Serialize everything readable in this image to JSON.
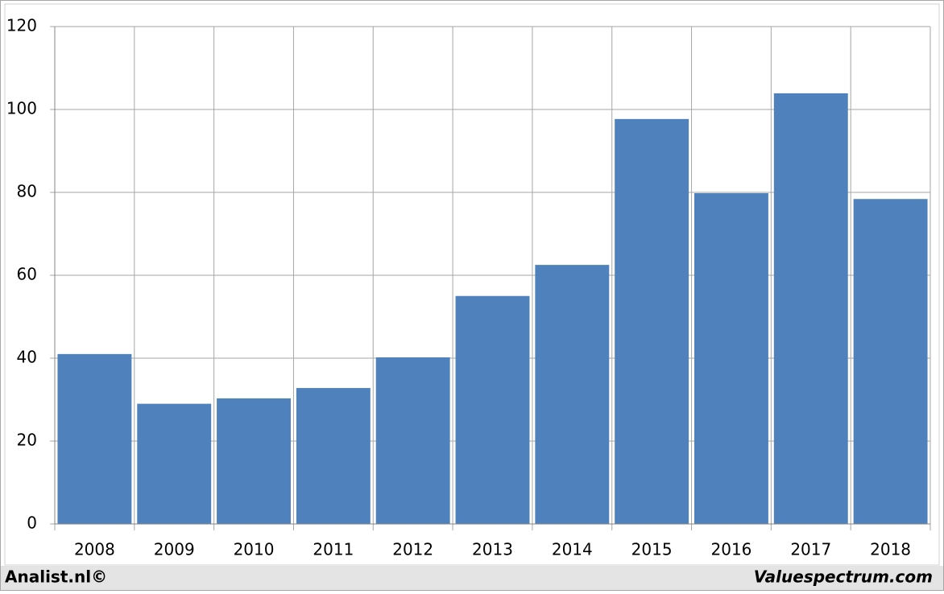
{
  "chart_data": {
    "type": "bar",
    "categories": [
      "2008",
      "2009",
      "2010",
      "2011",
      "2012",
      "2013",
      "2014",
      "2015",
      "2016",
      "2017",
      "2018"
    ],
    "values": [
      41,
      29,
      30.3,
      32.8,
      40.2,
      55,
      62.5,
      97.7,
      79.8,
      103.9,
      78.4
    ],
    "color": "#4f81bd",
    "ylim": [
      0,
      120
    ],
    "yticks": [
      0,
      20,
      40,
      60,
      80,
      100,
      120
    ],
    "grid": true
  },
  "footer": {
    "left": "Analist.nl©",
    "right": "Valuespectrum.com"
  }
}
